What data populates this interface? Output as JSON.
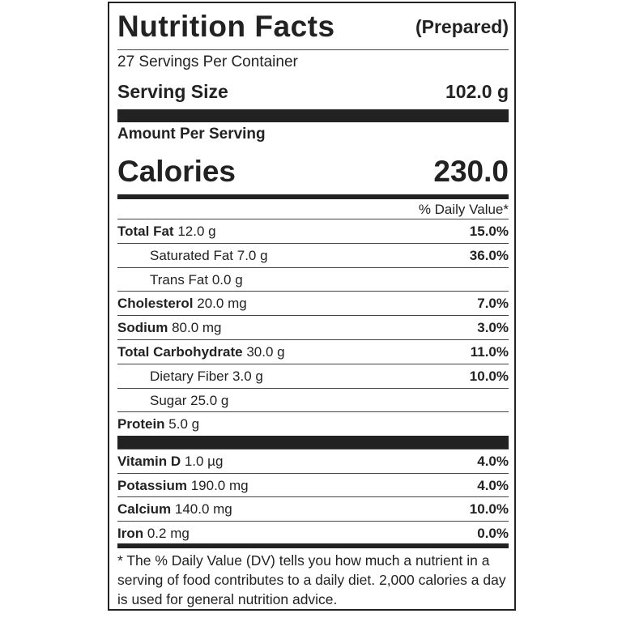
{
  "header": {
    "title": "Nutrition Facts",
    "qualifier": "(Prepared)"
  },
  "servings": "27 Servings Per Container",
  "serving_size": {
    "label": "Serving Size",
    "value": "102.0 g"
  },
  "amount_per_serving": "Amount Per Serving",
  "calories": {
    "label": "Calories",
    "value": "230.0"
  },
  "daily_value_header": "% Daily Value*",
  "nutrients": [
    {
      "name": "Total Fat",
      "amount": "12.0 g",
      "dv": "15.0%"
    },
    {
      "name": "Saturated Fat",
      "amount": "7.0 g",
      "dv": "36.0%"
    },
    {
      "name": "Trans Fat",
      "amount": "0.0 g"
    },
    {
      "name": "Cholesterol",
      "amount": "20.0 mg",
      "dv": "7.0%"
    },
    {
      "name": "Sodium",
      "amount": "80.0 mg",
      "dv": "3.0%"
    },
    {
      "name": "Total Carbohydrate",
      "amount": "30.0 g",
      "dv": "11.0%"
    },
    {
      "name": "Dietary Fiber",
      "amount": "3.0 g",
      "dv": "10.0%"
    },
    {
      "name": "Sugar",
      "amount": "25.0 g"
    },
    {
      "name": "Protein",
      "amount": "5.0 g"
    }
  ],
  "vitamins": [
    {
      "name": "Vitamin D",
      "amount": "1.0 µg",
      "dv": "4.0%"
    },
    {
      "name": "Potassium",
      "amount": "190.0 mg",
      "dv": "4.0%"
    },
    {
      "name": "Calcium",
      "amount": "140.0 mg",
      "dv": "10.0%"
    },
    {
      "name": "Iron",
      "amount": "0.2 mg",
      "dv": "0.0%"
    }
  ],
  "footnote": "* The % Daily Value (DV) tells you how much a nutrient in a serving of food contributes to a daily diet. 2,000 calories a day is used for general nutrition advice."
}
